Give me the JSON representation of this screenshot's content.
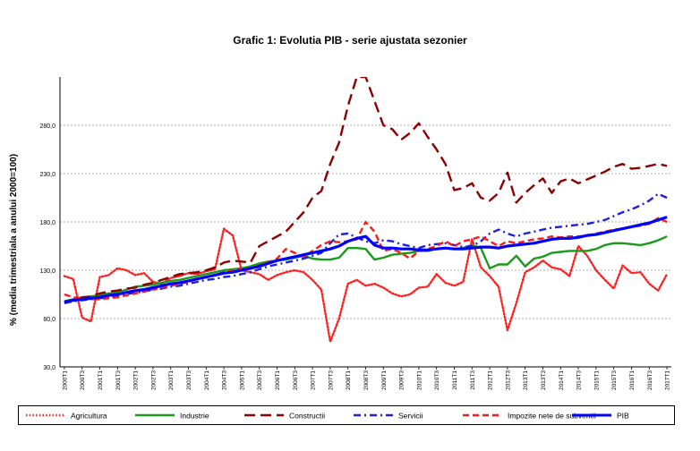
{
  "chart_data": {
    "type": "line",
    "title": "Grafic 1: Evolutia PIB - serie ajustata sezonier",
    "ylabel": "% (media trimestriala a anului 2000=100)",
    "xlabel": "",
    "ylim": [
      30,
      330
    ],
    "yticks": [
      30,
      80,
      130,
      180,
      230,
      280
    ],
    "ytick_labels": [
      "30,0",
      "80,0",
      "130,0",
      "180,0",
      "230,0",
      "280,0"
    ],
    "grid": true,
    "legend_position": "bottom",
    "x": [
      "2000T1",
      "2000T2",
      "2000T3",
      "2000T4",
      "2001T1",
      "2001T2",
      "2001T3",
      "2001T4",
      "2002T1",
      "2002T2",
      "2002T3",
      "2002T4",
      "2003T1",
      "2003T2",
      "2003T3",
      "2003T4",
      "2004T1",
      "2004T2",
      "2004T3",
      "2004T4",
      "2005T1",
      "2005T2",
      "2005T3",
      "2005T4",
      "2006T1",
      "2006T2",
      "2006T3",
      "2006T4",
      "2007T1",
      "2007T2",
      "2007T3",
      "2007T4",
      "2008T1",
      "2008T2",
      "2008T3",
      "2008T4",
      "2009T1",
      "2009T2",
      "2009T3",
      "2009T4",
      "2010T1",
      "2010T2",
      "2010T3",
      "2010T4",
      "2011T1",
      "2011T2",
      "2011T3",
      "2011T4",
      "2012T1",
      "2012T2",
      "2012T3",
      "2012T4",
      "2013T1",
      "2013T2",
      "2013T3",
      "2013T4",
      "2014T1",
      "2014T2",
      "2014T3",
      "2014T4",
      "2015T1",
      "2015T2",
      "2015T3",
      "2015T4",
      "2016T1",
      "2016T2",
      "2016T3",
      "2016T4",
      "2017T1"
    ],
    "xtick_labels": [
      "2000T1",
      "2000T3",
      "2001T1",
      "2001T3",
      "2002T1",
      "2002T3",
      "2003T1",
      "2003T3",
      "2004T1",
      "2004T3",
      "2005T1",
      "2005T3",
      "2006T1",
      "2006T3",
      "2007T1",
      "2007T3",
      "2008T1",
      "2008T3",
      "2009T1",
      "2009T3",
      "2010T1",
      "2010T3",
      "2011T1",
      "2011T3",
      "2012T1",
      "2012T3",
      "2013T1",
      "2013T3",
      "2014T1",
      "2014T3",
      "2015T1",
      "2015T3",
      "2016T1",
      "2016T3",
      "2017T1"
    ],
    "series": [
      {
        "name": "Agricultura",
        "color": "#ff2020",
        "style": "dotted",
        "values": [
          124,
          121,
          81,
          77,
          123,
          125,
          132,
          130,
          125,
          127,
          118,
          116,
          122,
          124,
          127,
          126,
          129,
          131,
          173,
          166,
          130,
          128,
          126,
          120,
          125,
          128,
          130,
          128,
          120,
          110,
          56,
          80,
          116,
          120,
          114,
          116,
          112,
          106,
          103,
          105,
          112,
          113,
          126,
          117,
          114,
          118,
          162,
          133,
          124,
          113,
          68,
          96,
          128,
          133,
          140,
          133,
          131,
          124,
          155,
          145,
          130,
          120,
          111,
          135,
          127,
          128,
          116,
          109,
          126
        ]
      },
      {
        "name": "Industrie",
        "color": "#1a9a1a",
        "style": "solid",
        "values": [
          98,
          100,
          101,
          103,
          104,
          106,
          107,
          110,
          113,
          114,
          115,
          117,
          119,
          120,
          122,
          124,
          126,
          128,
          130,
          131,
          132,
          134,
          137,
          139,
          140,
          141,
          143,
          145,
          142,
          141,
          141,
          143,
          153,
          153,
          152,
          141,
          143,
          146,
          147,
          148,
          150,
          150,
          152,
          153,
          152,
          153,
          156,
          153,
          132,
          136,
          136,
          145,
          134,
          142,
          144,
          148,
          149,
          150,
          150,
          150,
          152,
          156,
          158,
          158,
          157,
          156,
          158,
          161,
          165
        ]
      },
      {
        "name": "Constructii",
        "color": "#8b0000",
        "style": "longdash",
        "values": [
          96,
          99,
          102,
          103,
          106,
          108,
          109,
          111,
          112,
          115,
          117,
          120,
          123,
          126,
          127,
          128,
          130,
          133,
          138,
          140,
          139,
          138,
          155,
          160,
          165,
          170,
          180,
          190,
          205,
          212,
          240,
          262,
          300,
          330,
          330,
          305,
          280,
          276,
          265,
          272,
          282,
          268,
          255,
          240,
          213,
          215,
          220,
          205,
          202,
          210,
          231,
          200,
          210,
          218,
          225,
          210,
          222,
          225,
          220,
          224,
          228,
          232,
          237,
          240,
          235,
          236,
          238,
          240,
          238
        ]
      },
      {
        "name": "Servicii",
        "color": "#1f1fe0",
        "style": "dashdot",
        "values": [
          96,
          98,
          99,
          100,
          101,
          102,
          103,
          105,
          107,
          108,
          110,
          111,
          113,
          114,
          116,
          118,
          120,
          121,
          123,
          124,
          126,
          128,
          131,
          134,
          136,
          138,
          140,
          142,
          145,
          148,
          158,
          167,
          168,
          164,
          160,
          158,
          161,
          160,
          157,
          155,
          153,
          156,
          157,
          158,
          156,
          154,
          155,
          160,
          168,
          172,
          168,
          165,
          168,
          170,
          172,
          174,
          175,
          176,
          177,
          178,
          180,
          182,
          186,
          190,
          193,
          197,
          202,
          209,
          205
        ]
      },
      {
        "name": "Impozite nete de subventii",
        "color": "#ff1a1a",
        "style": "dashed",
        "values": [
          105,
          102,
          101,
          100,
          100,
          101,
          102,
          104,
          106,
          108,
          110,
          112,
          114,
          116,
          118,
          121,
          123,
          125,
          128,
          130,
          131,
          132,
          135,
          138,
          142,
          152,
          148,
          144,
          150,
          156,
          160,
          159,
          160,
          162,
          180,
          170,
          150,
          152,
          148,
          142,
          150,
          152,
          155,
          160,
          155,
          160,
          162,
          165,
          160,
          155,
          160,
          158,
          160,
          162,
          163,
          165,
          164,
          165,
          165,
          166,
          168,
          170,
          172,
          173,
          175,
          176,
          178,
          184,
          180
        ]
      },
      {
        "name": "PIB",
        "color": "#0000ff",
        "style": "solid",
        "values": [
          97,
          99,
          100,
          101,
          102,
          104,
          105,
          107,
          109,
          110,
          112,
          114,
          116,
          117,
          119,
          121,
          123,
          125,
          127,
          128,
          130,
          132,
          134,
          137,
          140,
          142,
          144,
          146,
          148,
          150,
          152,
          155,
          160,
          163,
          165,
          156,
          153,
          153,
          152,
          152,
          151,
          151,
          152,
          153,
          152,
          152,
          153,
          154,
          154,
          153,
          155,
          156,
          157,
          158,
          160,
          162,
          163,
          163,
          164,
          166,
          167,
          169,
          171,
          173,
          175,
          177,
          179,
          182,
          185
        ]
      }
    ]
  }
}
